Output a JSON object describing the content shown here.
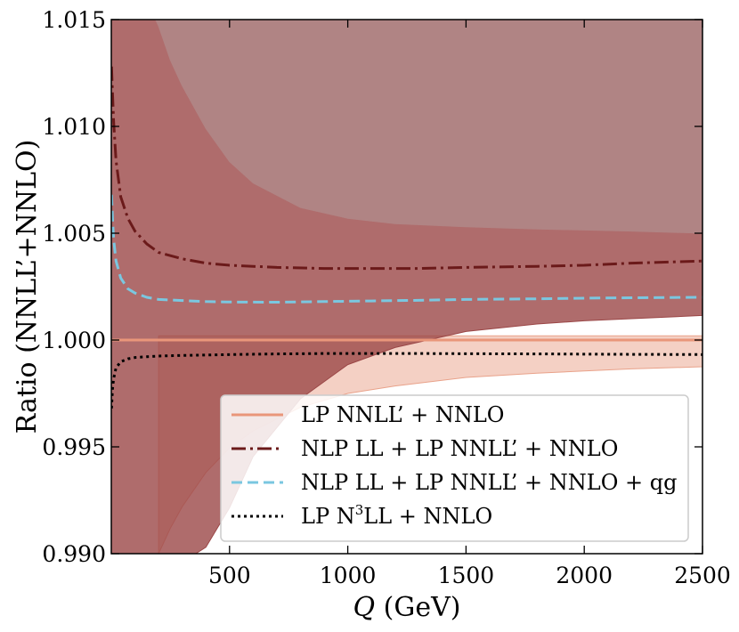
{
  "chart_data": {
    "type": "line",
    "title": "",
    "xlabel_symbol": "Q",
    "xlabel_unit": "(GeV)",
    "ylabel": "Ratio (NNLL’+NNLO)",
    "xlim": [
      0,
      2500
    ],
    "ylim": [
      0.99,
      1.015
    ],
    "xticks": [
      500,
      1000,
      1500,
      2000,
      2500
    ],
    "xtick_labels": [
      "500",
      "1000",
      "1500",
      "2000",
      "2500"
    ],
    "yticks": [
      0.99,
      0.995,
      1.0,
      1.005,
      1.01,
      1.015
    ],
    "ytick_labels": [
      "0.990",
      "0.995",
      "1.000",
      "1.005",
      "1.010",
      "1.015"
    ],
    "grid": false,
    "legend_position": "lower-right",
    "legend": [
      {
        "pre": "LP NNLL’ + NNLO",
        "sup": "",
        "post": ""
      },
      {
        "pre": "NLP LL + LP NNLL’ + NNLO",
        "sup": "",
        "post": ""
      },
      {
        "pre": "NLP LL + LP NNLL’ + NNLO + qg",
        "sup": "",
        "post": ""
      },
      {
        "pre": "LP N",
        "sup": "3",
        "post": "LL + NNLO"
      }
    ],
    "bands": [
      {
        "name": "LP NNLL’ + NNLO scale band",
        "color": "#e9a28a",
        "opacity": 0.5,
        "x": [
          200,
          250,
          300,
          400,
          500,
          600,
          800,
          1000,
          1200,
          1500,
          1800,
          2000,
          2200,
          2500
        ],
        "upper": [
          1.0002,
          1.0002,
          1.0002,
          1.0002,
          1.0002,
          1.0002,
          1.0002,
          1.0002,
          1.0002,
          1.0002,
          1.0002,
          1.0002,
          1.0002,
          1.0002
        ],
        "lower": [
          0.99,
          0.9912,
          0.9922,
          0.9938,
          0.99495,
          0.99575,
          0.99685,
          0.9975,
          0.99785,
          0.99825,
          0.99845,
          0.99855,
          0.99865,
          0.99875
        ]
      },
      {
        "name": "NLP LL + LP NNLL’ + NNLO scale band",
        "color": "#9b4747",
        "opacity": 0.8,
        "x": [
          0,
          50,
          100,
          150,
          200,
          250,
          300,
          400,
          500,
          600,
          800,
          1000,
          1200,
          1500,
          1800,
          2000,
          2200,
          2500
        ],
        "upper": [
          1.0154,
          1.0154,
          1.0154,
          1.0154,
          1.0154,
          1.0154,
          1.0154,
          1.0154,
          1.0154,
          1.0154,
          1.0154,
          1.0154,
          1.0154,
          1.0154,
          1.0154,
          1.0154,
          1.0154,
          1.0154
        ],
        "lower": [
          0.9896,
          0.9896,
          0.9896,
          0.9896,
          0.9896,
          0.9896,
          0.9896,
          0.9903,
          0.99215,
          0.99455,
          0.99725,
          0.99885,
          0.99965,
          1.0004,
          1.00075,
          1.0009,
          1.001,
          1.00115
        ]
      },
      {
        "name": "NLP LL + LP NNLL’ + NNLO upper scale variation",
        "color": "#b08484",
        "opacity": 1.0,
        "x": [
          170,
          200,
          250,
          300,
          400,
          500,
          600,
          800,
          1000,
          1200,
          1500,
          1800,
          2000,
          2200,
          2500
        ],
        "upper": [
          1.0154,
          1.0154,
          1.0154,
          1.0154,
          1.0154,
          1.0154,
          1.0154,
          1.0154,
          1.0154,
          1.0154,
          1.0154,
          1.0154,
          1.0154,
          1.0154,
          1.0154
        ],
        "lower": [
          1.0154,
          1.0147,
          1.0131,
          1.0119,
          1.0099,
          1.00835,
          1.00735,
          1.0062,
          1.0057,
          1.00545,
          1.0053,
          1.0052,
          1.00515,
          1.0051,
          1.005
        ]
      }
    ],
    "series": [
      {
        "name": "LP NNLL’ + NNLO",
        "color": "#e9967a",
        "dash": "",
        "width": 3,
        "x": [
          0,
          2500
        ],
        "y": [
          1.0,
          1.0
        ]
      },
      {
        "name": "NLP LL + LP NNLL’ + NNLO",
        "color": "#6b1a1a",
        "dash": "16 5 3 5",
        "width": 3,
        "x": [
          1,
          5,
          10,
          20,
          40,
          70,
          100,
          150,
          200,
          300,
          400,
          500,
          700,
          900,
          1100,
          1300,
          1500,
          1800,
          2000,
          2200,
          2500
        ],
        "y": [
          1.0128,
          1.0116,
          1.0102,
          1.0084,
          1.0067,
          1.0057,
          1.0051,
          1.0045,
          1.0041,
          1.0038,
          1.0036,
          1.0035,
          1.0034,
          1.00335,
          1.00335,
          1.00335,
          1.0034,
          1.00345,
          1.0035,
          1.0036,
          1.0037
        ]
      },
      {
        "name": "NLP LL + LP NNLL’ + NNLO + qg",
        "color": "#7ac7e0",
        "dash": "12 6",
        "width": 3,
        "x": [
          1,
          5,
          10,
          20,
          40,
          70,
          100,
          150,
          200,
          300,
          400,
          500,
          700,
          900,
          1100,
          1300,
          1500,
          1800,
          2000,
          2200,
          2500
        ],
        "y": [
          1.0068,
          1.0057,
          1.0047,
          1.0037,
          1.0029,
          1.0024,
          1.0022,
          1.002,
          1.0019,
          1.00185,
          1.0018,
          1.00178,
          1.00177,
          1.0018,
          1.00183,
          1.00186,
          1.0019,
          1.00193,
          1.00196,
          1.00198,
          1.002
        ]
      },
      {
        "name": "LP N³LL + NNLO",
        "color": "#000000",
        "dash": "3 4",
        "width": 3,
        "x": [
          1,
          5,
          10,
          20,
          40,
          70,
          100,
          150,
          200,
          300,
          400,
          500,
          700,
          900,
          1100,
          1300,
          1500,
          1800,
          2000,
          2200,
          2500
        ],
        "y": [
          0.9968,
          0.9977,
          0.9982,
          0.9987,
          0.99898,
          0.99912,
          0.99918,
          0.99922,
          0.99925,
          0.99928,
          0.9993,
          0.99932,
          0.99935,
          0.99937,
          0.99937,
          0.99937,
          0.99936,
          0.99935,
          0.99934,
          0.99933,
          0.99932
        ]
      }
    ]
  }
}
